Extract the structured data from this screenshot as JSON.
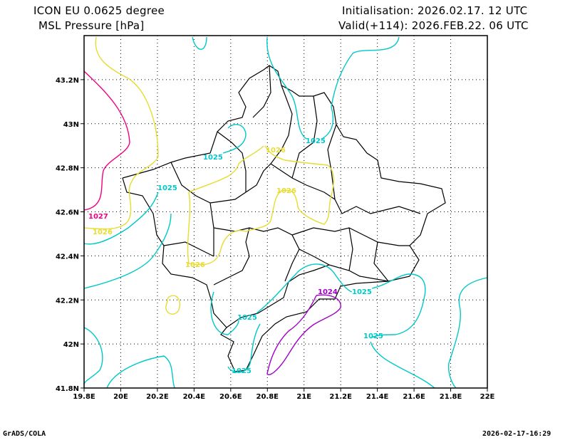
{
  "header": {
    "model": "ICON EU 0.0625 degree",
    "variable": "MSL Pressure [hPa]",
    "initialisation": "Initialisation: 2026.02.17. 12 UTC",
    "valid": "Valid(+114): 2026.FEB.22. 06 UTC"
  },
  "map": {
    "x_ticks": [
      "19.8E",
      "20E",
      "20.2E",
      "20.4E",
      "20.6E",
      "20.8E",
      "21E",
      "21.2E",
      "21.4E",
      "21.6E",
      "21.8E",
      "22E"
    ],
    "y_ticks": [
      "41.8N",
      "42N",
      "42.2N",
      "42.4N",
      "42.6N",
      "42.8N",
      "43N",
      "43.2N"
    ],
    "lon_range": [
      19.8,
      22.0
    ],
    "lat_range": [
      41.8,
      43.4
    ],
    "colors": {
      "c1024": "#a000c8",
      "c1025": "#00c8c8",
      "c1026": "#e6dc32",
      "c1027": "#f00082",
      "border": "#000000"
    },
    "contour_labels": {
      "l1027": "1027",
      "l1026a": "1026",
      "l1026b": "1026",
      "l1026c": "1026",
      "l1026d": "1026",
      "l1025a": "1025",
      "l1025b": "1025",
      "l1025c": "1025",
      "l1025d": "1025",
      "l1025e": "1025",
      "l1025f": "1025",
      "l1025g": "1025",
      "l1024": "1024"
    }
  },
  "footer": {
    "left": "GrADS/COLA",
    "right": "2026-02-17-16:29"
  }
}
